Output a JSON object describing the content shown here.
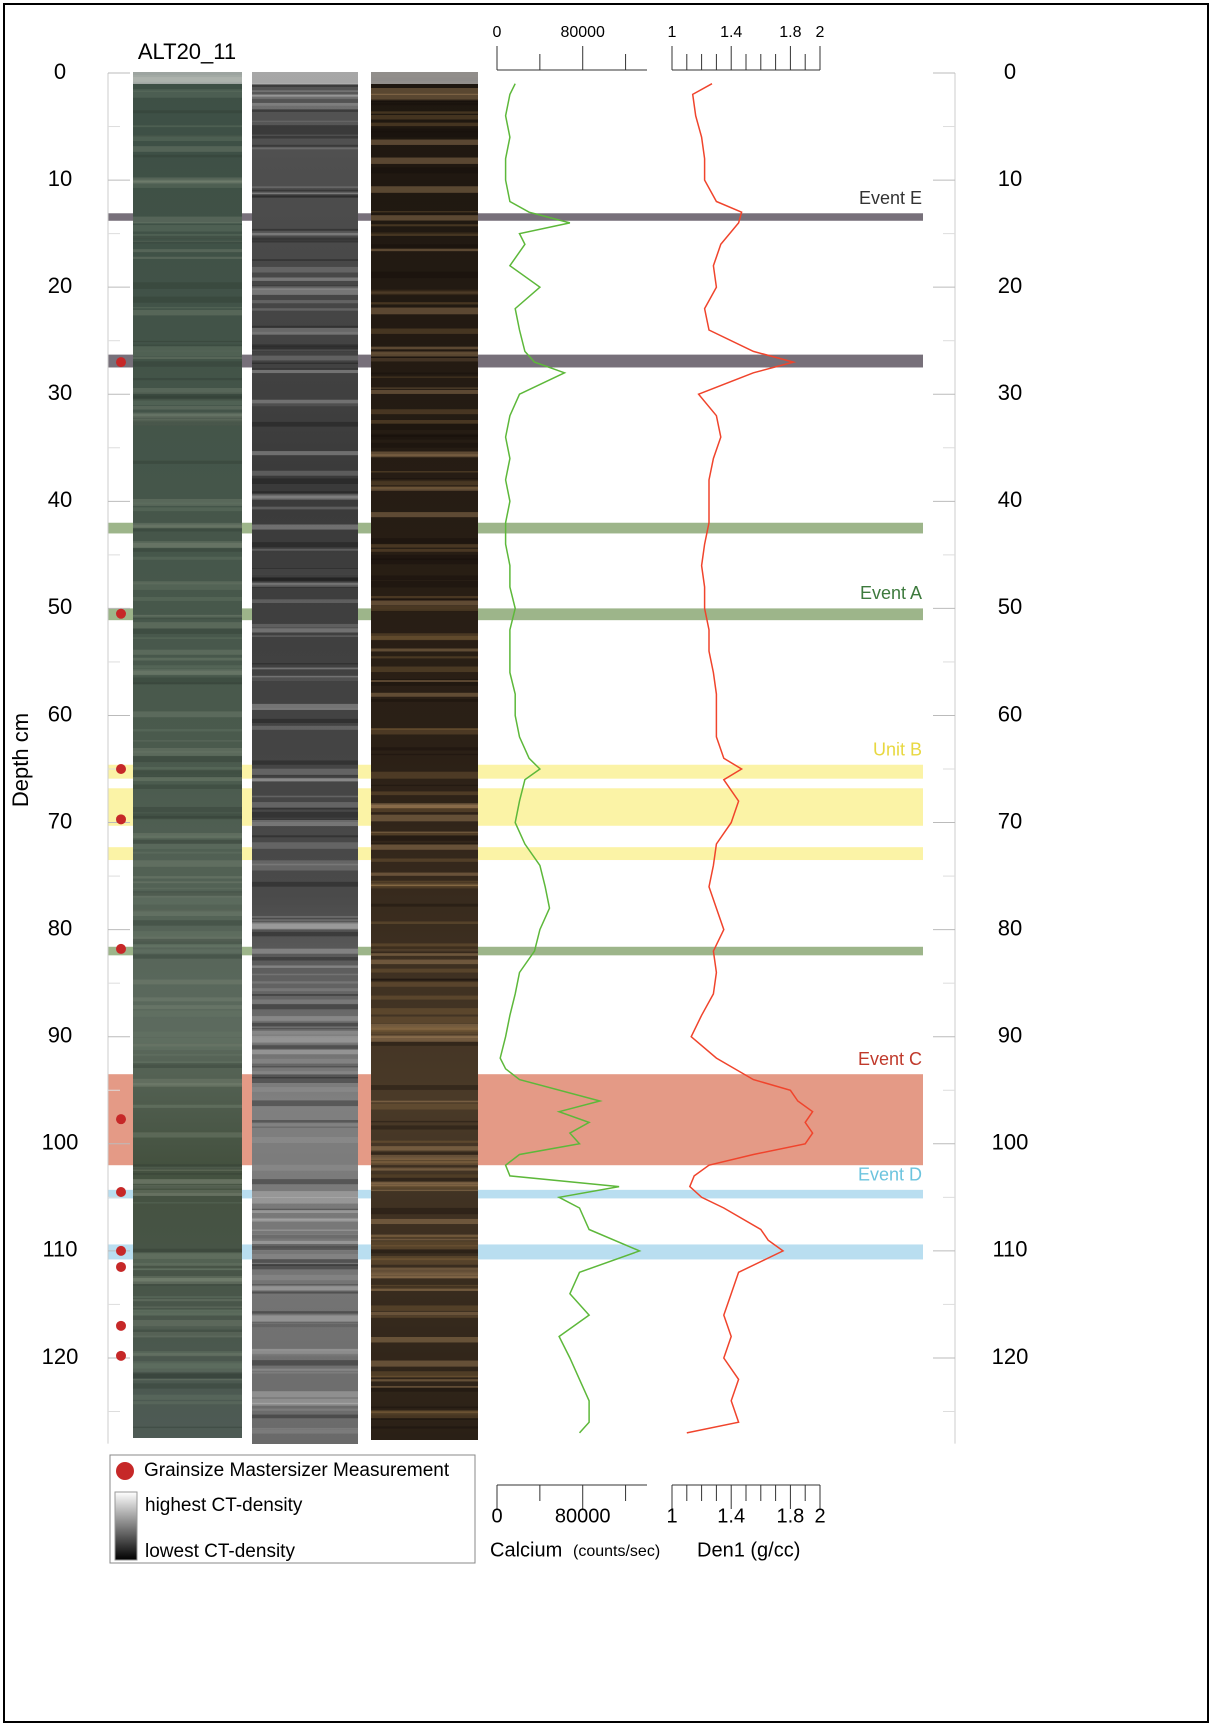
{
  "chart_data": {
    "type": "core-log",
    "title": "ALT20_11",
    "y_label": "Depth cm",
    "ylim": [
      0,
      128
    ],
    "yticks": [
      0,
      10,
      20,
      30,
      40,
      50,
      60,
      70,
      80,
      90,
      100,
      110,
      120
    ],
    "yminor": [
      5,
      15,
      25,
      35,
      45,
      55,
      65,
      75,
      85,
      95,
      105,
      115,
      125
    ],
    "tracks": [
      {
        "name": "Calcium",
        "unit": "(counts/sec)",
        "color": "#5db83a",
        "xlim": [
          0,
          140000
        ],
        "xticks": [
          0,
          80000
        ],
        "xminor": [
          40000,
          120000
        ],
        "depth": [
          1,
          2,
          4,
          6,
          8,
          10,
          12,
          13,
          14,
          15,
          16,
          18,
          20,
          22,
          24,
          26,
          27,
          28,
          30,
          32,
          34,
          36,
          38,
          40,
          42,
          44,
          46,
          48,
          50,
          52,
          54,
          56,
          58,
          60,
          62,
          64,
          65,
          66,
          68,
          70,
          72,
          74,
          76,
          78,
          80,
          82,
          84,
          86,
          88,
          90,
          92,
          93,
          94,
          96,
          97,
          98,
          99,
          100,
          101,
          102,
          103,
          104,
          105,
          106,
          108,
          110,
          112,
          114,
          116,
          118,
          120,
          122,
          124,
          126,
          127
        ],
        "values": [
          17000,
          12000,
          8000,
          12000,
          8000,
          8000,
          12000,
          30000,
          68000,
          21000,
          26000,
          12000,
          40000,
          17000,
          21000,
          26000,
          35000,
          63000,
          21000,
          12000,
          8000,
          12000,
          8000,
          12000,
          8000,
          8000,
          12000,
          12000,
          17000,
          12000,
          12000,
          12000,
          17000,
          17000,
          21000,
          30000,
          40000,
          26000,
          21000,
          17000,
          26000,
          40000,
          45000,
          49000,
          40000,
          35000,
          21000,
          17000,
          12000,
          8000,
          3000,
          8000,
          21000,
          96000,
          58000,
          86000,
          68000,
          77000,
          21000,
          8000,
          12000,
          114000,
          58000,
          77000,
          86000,
          133000,
          77000,
          68000,
          86000,
          58000,
          68000,
          77000,
          86000,
          86000,
          77000
        ]
      },
      {
        "name": "Den1 (g/cc)",
        "color": "#f0442c",
        "xlim": [
          1,
          2
        ],
        "xticks": [
          1,
          1.4,
          1.8,
          2
        ],
        "xminor": [
          1.1,
          1.2,
          1.3,
          1.5,
          1.6,
          1.7,
          1.9
        ],
        "depth": [
          1,
          2,
          4,
          6,
          8,
          10,
          12,
          13,
          14,
          16,
          18,
          20,
          22,
          24,
          26,
          27,
          28,
          30,
          32,
          34,
          36,
          38,
          40,
          42,
          44,
          46,
          48,
          50,
          52,
          54,
          56,
          58,
          60,
          62,
          64,
          65,
          66,
          68,
          70,
          72,
          74,
          76,
          78,
          80,
          82,
          84,
          86,
          88,
          90,
          92,
          94,
          95,
          96,
          97,
          98,
          99,
          100,
          101,
          102,
          103,
          104,
          105,
          106,
          108,
          109,
          110,
          112,
          114,
          116,
          118,
          120,
          122,
          124,
          126,
          127
        ],
        "values": [
          1.27,
          1.14,
          1.16,
          1.2,
          1.22,
          1.22,
          1.3,
          1.47,
          1.45,
          1.33,
          1.28,
          1.3,
          1.22,
          1.25,
          1.55,
          1.82,
          1.55,
          1.18,
          1.3,
          1.33,
          1.28,
          1.25,
          1.25,
          1.25,
          1.22,
          1.2,
          1.22,
          1.22,
          1.25,
          1.25,
          1.28,
          1.3,
          1.3,
          1.3,
          1.35,
          1.47,
          1.35,
          1.45,
          1.4,
          1.3,
          1.28,
          1.25,
          1.3,
          1.35,
          1.28,
          1.3,
          1.28,
          1.2,
          1.13,
          1.3,
          1.55,
          1.8,
          1.85,
          1.95,
          1.9,
          1.95,
          1.9,
          1.55,
          1.25,
          1.15,
          1.12,
          1.2,
          1.35,
          1.6,
          1.65,
          1.75,
          1.45,
          1.4,
          1.35,
          1.4,
          1.35,
          1.45,
          1.4,
          1.45,
          1.1
        ]
      }
    ],
    "bands": [
      {
        "label": "Event E",
        "label_color": "#333333",
        "color": "#77707a",
        "top": 13.1,
        "bottom": 13.8
      },
      {
        "color": "#77707a",
        "top": 26.3,
        "bottom": 27.5
      },
      {
        "color": "#9db58a",
        "top": 42.0,
        "bottom": 43.0
      },
      {
        "label": "Event A",
        "label_color": "#3d7a3d",
        "color": "#9db58a",
        "top": 50.0,
        "bottom": 51.1
      },
      {
        "label": "Unit B",
        "label_color": "#e8d840",
        "color": "#fbf3a6",
        "top": 64.6,
        "bottom": 65.9
      },
      {
        "color": "#fbf3a6",
        "top": 66.8,
        "bottom": 70.3
      },
      {
        "color": "#fbf3a6",
        "top": 72.3,
        "bottom": 73.5
      },
      {
        "color": "#9db58a",
        "top": 81.6,
        "bottom": 82.4
      },
      {
        "label": "Event C",
        "label_color": "#c0392b",
        "color": "#e49a86",
        "top": 93.5,
        "bottom": 102.0
      },
      {
        "label": "Event D",
        "label_color": "#6cc4de",
        "color": "#b9def0",
        "top": 104.3,
        "bottom": 105.1
      },
      {
        "color": "#b9def0",
        "top": 109.4,
        "bottom": 110.8
      }
    ],
    "samples": {
      "name": "Grainsize Mastersizer Measurement",
      "color": "#c62828",
      "depth": [
        27,
        50.5,
        65,
        69.7,
        81.8,
        97.7,
        104.5,
        110,
        111.5,
        117,
        119.8
      ]
    },
    "ct_legend": [
      "highest CT-density",
      "lowest CT-density"
    ]
  }
}
